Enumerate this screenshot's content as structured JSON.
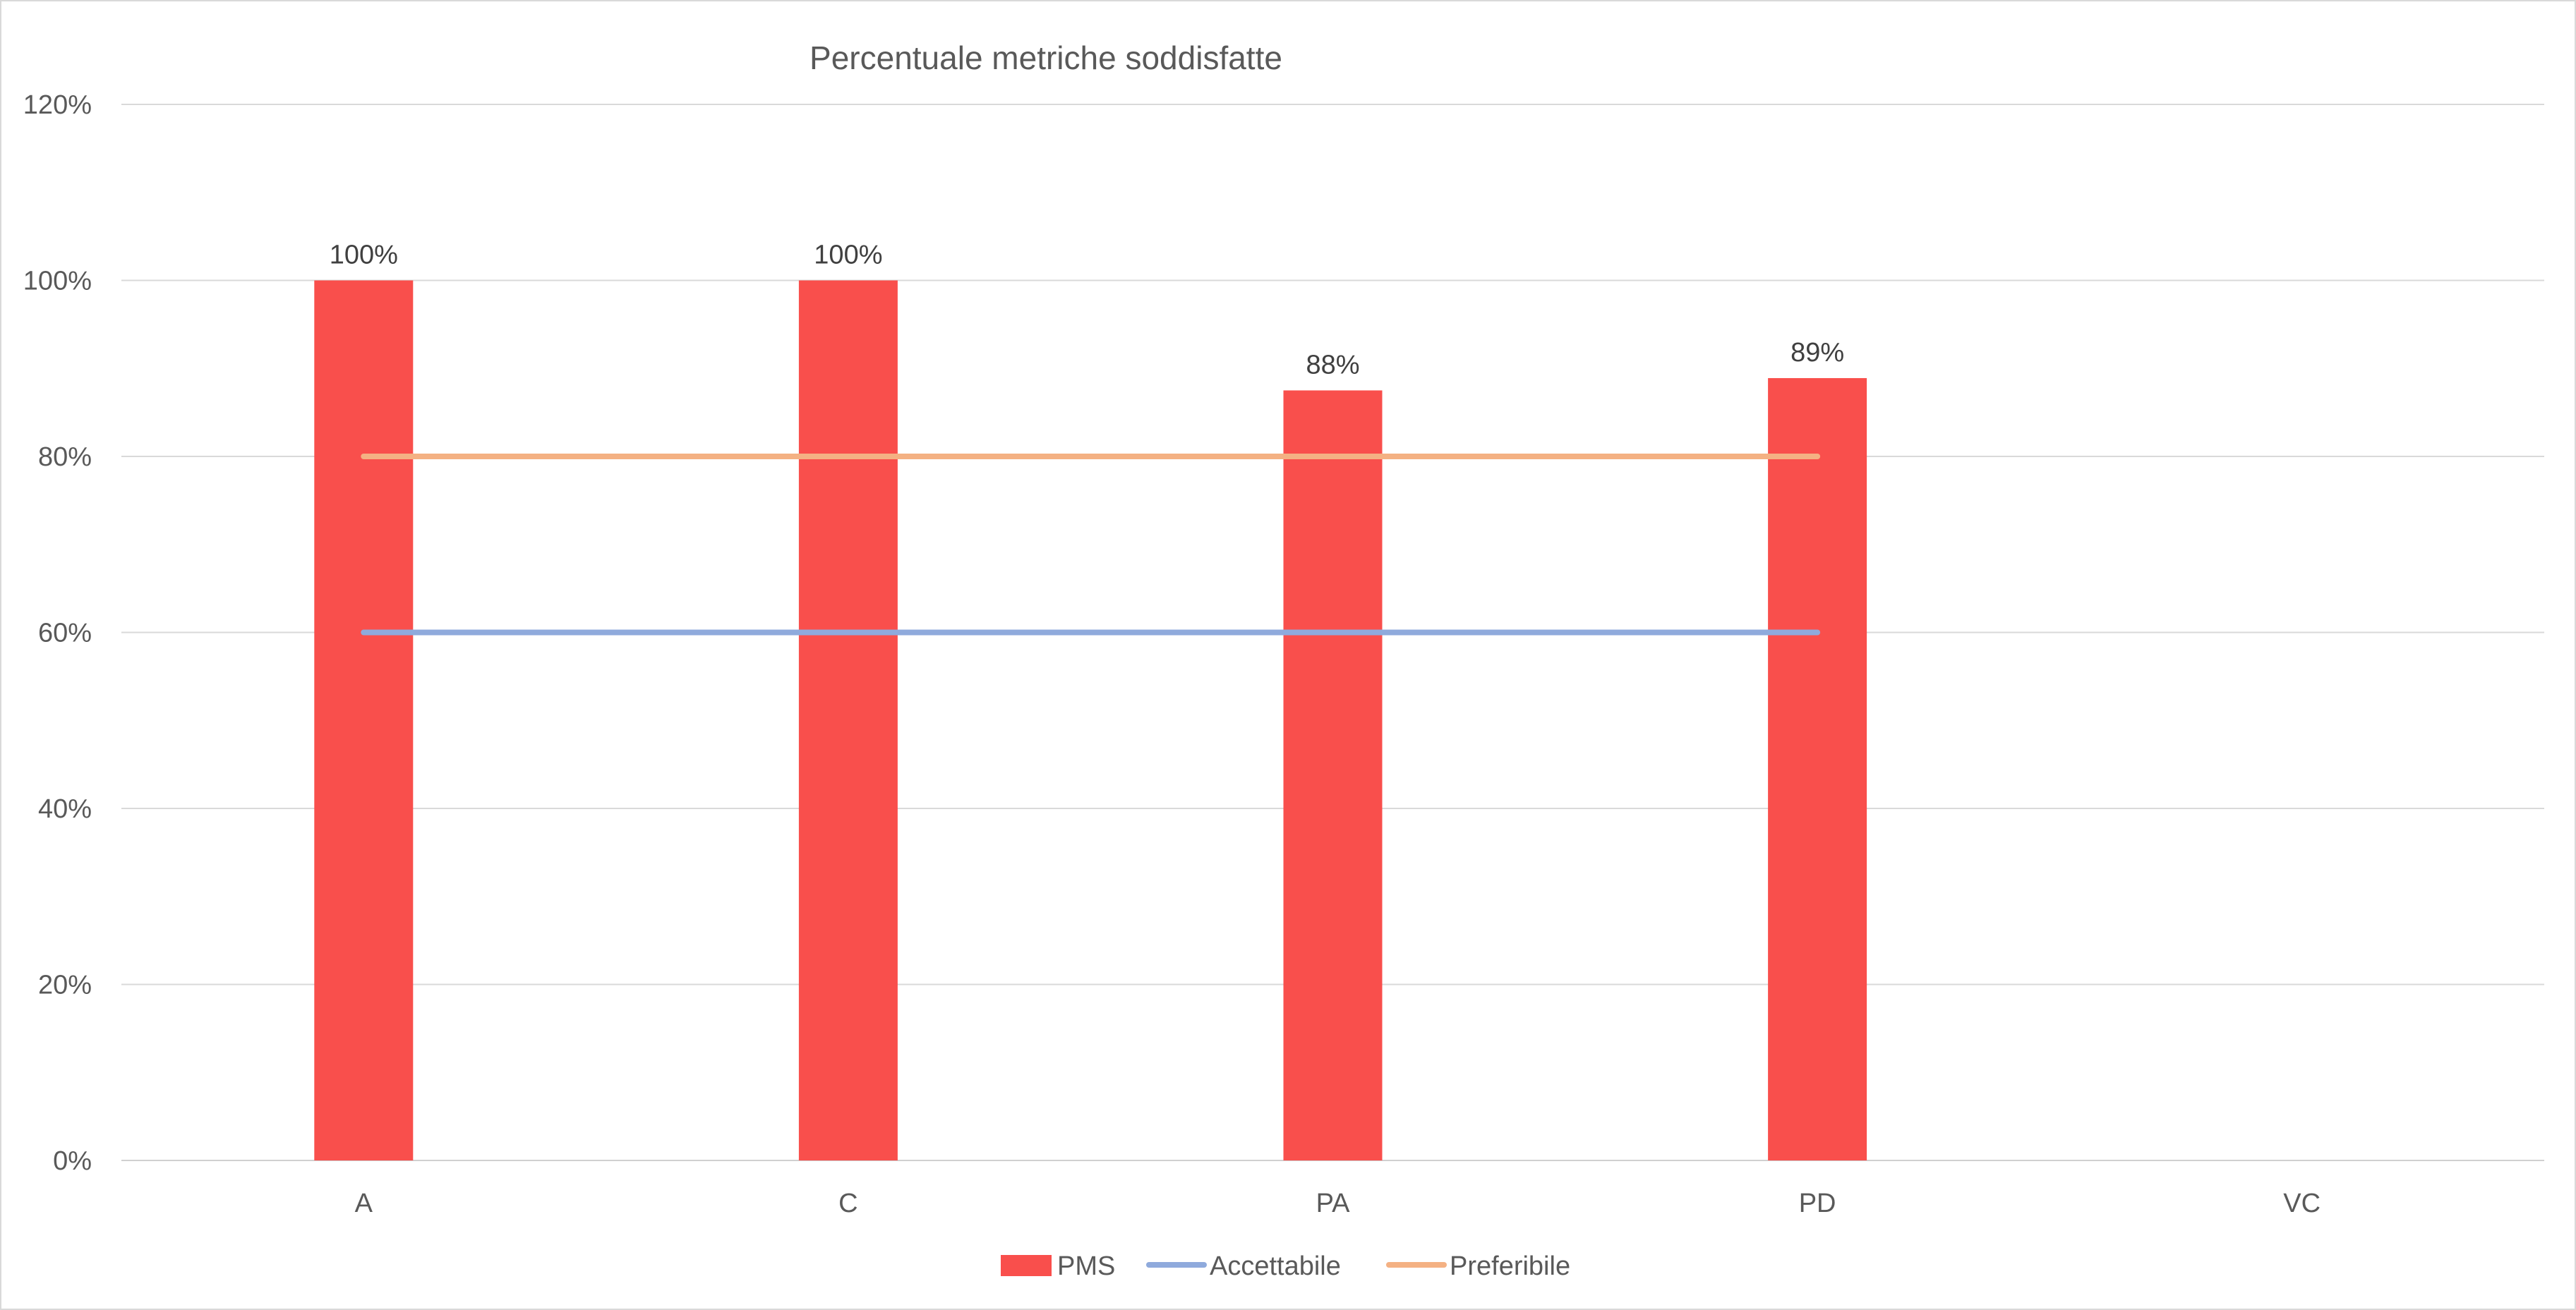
{
  "chart_data": {
    "type": "bar",
    "title": "Percentuale metriche soddisfatte",
    "categories": [
      "A",
      "C",
      "PA",
      "PD",
      "VC"
    ],
    "ylim": [
      0,
      1.2
    ],
    "y_ticks": [
      0,
      0.2,
      0.4,
      0.6,
      0.8,
      1.0,
      1.2
    ],
    "y_tick_labels": [
      "0%",
      "20%",
      "40%",
      "60%",
      "80%",
      "100%",
      "120%"
    ],
    "grid": true,
    "legend_position": "bottom",
    "series": [
      {
        "name": "PMS",
        "kind": "bar",
        "color": "#f94f4c",
        "values": [
          1.0,
          1.0,
          0.875,
          0.889,
          null
        ],
        "data_labels": [
          "100%",
          "100%",
          "88%",
          "89%",
          ""
        ]
      },
      {
        "name": "Accettabile",
        "kind": "line",
        "color": "#8faadc",
        "values": [
          0.6,
          0.6,
          0.6,
          0.6,
          null
        ]
      },
      {
        "name": "Preferibile",
        "kind": "line",
        "color": "#f4b183",
        "values": [
          0.8,
          0.8,
          0.8,
          0.8,
          null
        ]
      }
    ]
  }
}
